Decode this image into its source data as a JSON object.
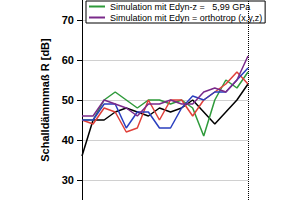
{
  "chart_data": {
    "type": "line",
    "y_label": "Schalldämmmaß R [dB]",
    "categories": [
      null,
      null,
      null,
      null,
      null,
      null,
      null,
      null,
      null,
      null,
      null,
      null,
      null,
      null,
      null,
      null
    ],
    "series": [
      {
        "color": "#000000",
        "values": [
          36,
          45,
          45,
          47,
          48,
          47,
          46,
          48,
          47,
          48,
          50,
          47,
          44,
          47,
          50,
          54
        ]
      },
      {
        "name": "Simulation mit Edyn-z =   5,99 GPa",
        "color": "#2e9a3a",
        "values": [
          45,
          45,
          50,
          52,
          50,
          48,
          50,
          50,
          49,
          50,
          48,
          41,
          50,
          55,
          53,
          57
        ]
      },
      {
        "color": "#e0403a",
        "values": [
          45,
          44,
          48,
          47,
          42,
          43,
          50,
          45,
          50,
          50,
          46,
          50,
          52,
          54,
          57,
          54
        ]
      },
      {
        "color": "#2a3fbf",
        "values": [
          45,
          45,
          49,
          49,
          43,
          47,
          47,
          43,
          43,
          48,
          51,
          50,
          52,
          52,
          55,
          58
        ]
      },
      {
        "name": "Simulation mit Edyn = orthotrop (x,y,z)",
        "color": "#7a2a8a",
        "values": [
          46,
          46,
          50,
          49,
          48,
          46,
          49,
          49,
          50,
          49,
          49,
          52,
          53,
          52,
          55,
          61
        ]
      }
    ],
    "ylim": [
      25,
      75
    ],
    "yticks": [
      30,
      40,
      50,
      60,
      70
    ],
    "grid": true,
    "legend": "top",
    "tick_labels": "y"
  }
}
